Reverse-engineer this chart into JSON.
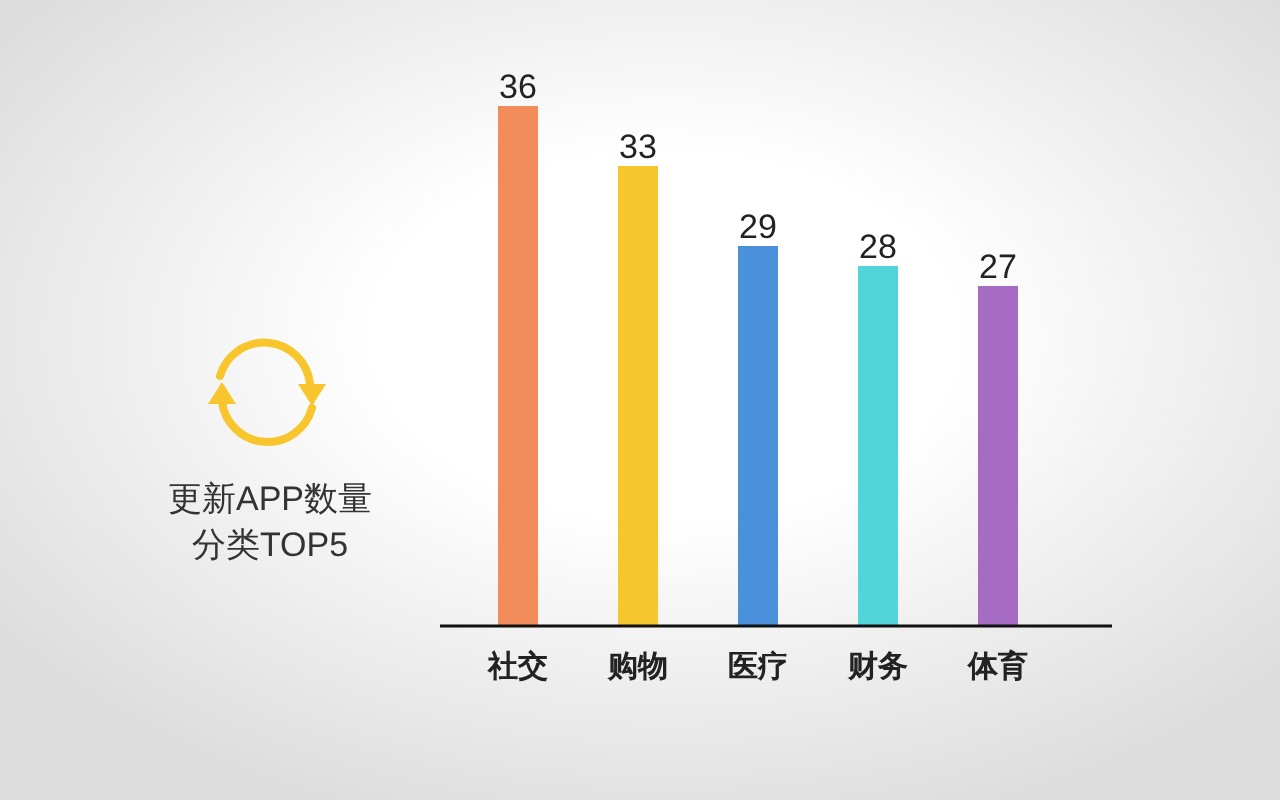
{
  "chart_data": {
    "type": "bar",
    "title": "更新APP数量分类TOP5",
    "categories": [
      "社交",
      "购物",
      "医疗",
      "财务",
      "体育"
    ],
    "values": [
      36,
      33,
      29,
      28,
      27
    ],
    "colors": [
      "#f38c5b",
      "#f5c72d",
      "#4a90db",
      "#52d5da",
      "#a66cc3"
    ],
    "ylim": [
      10,
      36
    ],
    "data_labels": true,
    "tick_labels": "x"
  }
}
